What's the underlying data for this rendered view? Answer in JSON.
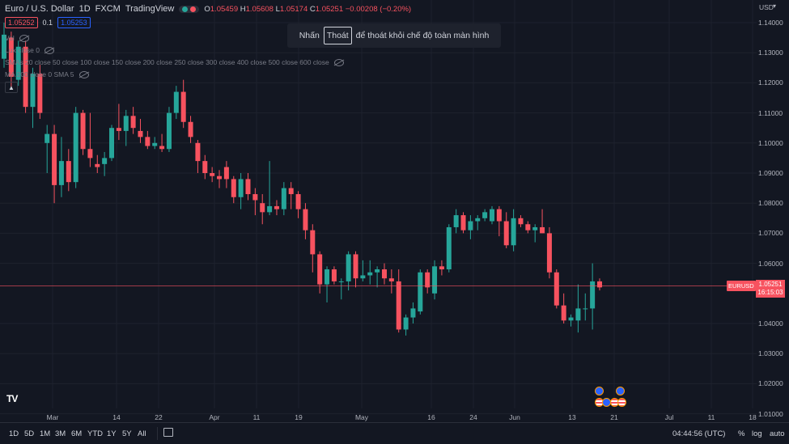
{
  "header": {
    "symbol_title": "Euro / U.S. Dollar",
    "interval": "1D",
    "exchange": "FXCM",
    "source": "TradingView",
    "ohlc": {
      "o_label": "O",
      "o": "1.05459",
      "h_label": "H",
      "h": "1.05608",
      "l_label": "L",
      "l": "1.05174",
      "c_label": "C",
      "c": "1.05251",
      "change": "−0.00208 (−0.20%)"
    },
    "colors": {
      "market_dot1": "#26a69a",
      "market_dot2": "#f7525f",
      "down": "#f7525f",
      "up": "#26a69a"
    }
  },
  "trade": {
    "sell": "1.05252",
    "spread": "0.1",
    "buy": "1.05253"
  },
  "indicators": [
    {
      "label": "Vol"
    },
    {
      "label": "Lux    close 0"
    },
    {
      "label": "SMAs 20 close 50 close 100 close 150 close 200 close 250 close 300 close 400 close 500 close 600 close"
    },
    {
      "label": "MA 200 close 0 SMA 5"
    }
  ],
  "toast": {
    "before": "Nhấn",
    "key": "Thoát",
    "after": "để thoát khỏi chế độ toàn màn hình"
  },
  "price_axis": {
    "currency": "USD",
    "labels": [
      "1.14000",
      "1.13000",
      "1.12000",
      "1.11000",
      "1.10000",
      "1.09000",
      "1.08000",
      "1.07000",
      "1.06000",
      "1.04000",
      "1.03000",
      "1.02000",
      "1.01000"
    ],
    "symbol_tag": "EURUSD",
    "last_price": "1.05251",
    "countdown": "16:15:03"
  },
  "time_axis": [
    "Mar",
    "14",
    "22",
    "Apr",
    "11",
    "19",
    "May",
    "16",
    "24",
    "Jun",
    "13",
    "21",
    "Jul",
    "11",
    "18"
  ],
  "bottom_bar": {
    "timeframes": [
      "1D",
      "5D",
      "1M",
      "3M",
      "6M",
      "YTD",
      "1Y",
      "5Y",
      "All"
    ],
    "clock": "04:44:56 (UTC)",
    "percent": "%",
    "log": "log",
    "auto": "auto"
  },
  "chart_data": {
    "type": "candlestick",
    "ylim": [
      1.01,
      1.145
    ],
    "last_price_line": 1.05251,
    "candles": [
      [
        1.128,
        1.14,
        1.125,
        1.136
      ],
      [
        1.135,
        1.137,
        1.118,
        1.122
      ],
      [
        1.121,
        1.134,
        1.119,
        1.132
      ],
      [
        1.132,
        1.134,
        1.11,
        1.112
      ],
      [
        1.112,
        1.125,
        1.105,
        1.123
      ],
      [
        1.123,
        1.126,
        1.108,
        1.11
      ],
      [
        1.1,
        1.106,
        1.09,
        1.103
      ],
      [
        1.103,
        1.106,
        1.08,
        1.086
      ],
      [
        1.086,
        1.102,
        1.082,
        1.094
      ],
      [
        1.094,
        1.098,
        1.084,
        1.087
      ],
      [
        1.087,
        1.112,
        1.085,
        1.11
      ],
      [
        1.11,
        1.111,
        1.096,
        1.098
      ],
      [
        1.098,
        1.11,
        1.092,
        1.095
      ],
      [
        1.093,
        1.096,
        1.09,
        1.092
      ],
      [
        1.093,
        1.097,
        1.089,
        1.095
      ],
      [
        1.095,
        1.106,
        1.094,
        1.105
      ],
      [
        1.105,
        1.113,
        1.101,
        1.104
      ],
      [
        1.104,
        1.111,
        1.099,
        1.109
      ],
      [
        1.109,
        1.112,
        1.103,
        1.105
      ],
      [
        1.104,
        1.108,
        1.1,
        1.102
      ],
      [
        1.102,
        1.104,
        1.098,
        1.099
      ],
      [
        1.099,
        1.102,
        1.098,
        1.1
      ],
      [
        1.099,
        1.103,
        1.097,
        1.098
      ],
      [
        1.098,
        1.112,
        1.097,
        1.11
      ],
      [
        1.11,
        1.119,
        1.108,
        1.117
      ],
      [
        1.117,
        1.121,
        1.105,
        1.107
      ],
      [
        1.107,
        1.109,
        1.1,
        1.102
      ],
      [
        1.1,
        1.101,
        1.09,
        1.094
      ],
      [
        1.094,
        1.096,
        1.088,
        1.09
      ],
      [
        1.09,
        1.092,
        1.087,
        1.089
      ],
      [
        1.089,
        1.091,
        1.085,
        1.088
      ],
      [
        1.092,
        1.094,
        1.085,
        1.088
      ],
      [
        1.088,
        1.089,
        1.08,
        1.082
      ],
      [
        1.082,
        1.09,
        1.078,
        1.088
      ],
      [
        1.088,
        1.09,
        1.081,
        1.083
      ],
      [
        1.083,
        1.085,
        1.076,
        1.081
      ],
      [
        1.08,
        1.083,
        1.073,
        1.077
      ],
      [
        1.077,
        1.094,
        1.076,
        1.079
      ],
      [
        1.079,
        1.081,
        1.076,
        1.078
      ],
      [
        1.078,
        1.087,
        1.076,
        1.085
      ],
      [
        1.085,
        1.087,
        1.078,
        1.083
      ],
      [
        1.083,
        1.084,
        1.075,
        1.078
      ],
      [
        1.078,
        1.08,
        1.068,
        1.071
      ],
      [
        1.071,
        1.073,
        1.057,
        1.063
      ],
      [
        1.063,
        1.064,
        1.05,
        1.053
      ],
      [
        1.053,
        1.059,
        1.047,
        1.058
      ],
      [
        1.058,
        1.059,
        1.053,
        1.054
      ],
      [
        1.054,
        1.055,
        1.048,
        1.054
      ],
      [
        1.054,
        1.064,
        1.051,
        1.063
      ],
      [
        1.063,
        1.064,
        1.052,
        1.055
      ],
      [
        1.055,
        1.061,
        1.054,
        1.056
      ],
      [
        1.056,
        1.061,
        1.053,
        1.057
      ],
      [
        1.057,
        1.059,
        1.052,
        1.058
      ],
      [
        1.058,
        1.06,
        1.053,
        1.055
      ],
      [
        1.055,
        1.058,
        1.05,
        1.054
      ],
      [
        1.054,
        1.058,
        1.037,
        1.038
      ],
      [
        1.038,
        1.043,
        1.036,
        1.042
      ],
      [
        1.042,
        1.047,
        1.04,
        1.045
      ],
      [
        1.044,
        1.058,
        1.043,
        1.057
      ],
      [
        1.057,
        1.058,
        1.05,
        1.052
      ],
      [
        1.05,
        1.061,
        1.048,
        1.059
      ],
      [
        1.059,
        1.061,
        1.056,
        1.058
      ],
      [
        1.058,
        1.073,
        1.057,
        1.072
      ],
      [
        1.072,
        1.078,
        1.07,
        1.076
      ],
      [
        1.076,
        1.077,
        1.07,
        1.071
      ],
      [
        1.071,
        1.076,
        1.068,
        1.074
      ],
      [
        1.074,
        1.076,
        1.071,
        1.075
      ],
      [
        1.075,
        1.078,
        1.074,
        1.077
      ],
      [
        1.074,
        1.079,
        1.073,
        1.078
      ],
      [
        1.078,
        1.079,
        1.069,
        1.074
      ],
      [
        1.074,
        1.077,
        1.065,
        1.066
      ],
      [
        1.066,
        1.078,
        1.064,
        1.075
      ],
      [
        1.075,
        1.076,
        1.072,
        1.073
      ],
      [
        1.073,
        1.074,
        1.07,
        1.071
      ],
      [
        1.071,
        1.073,
        1.067,
        1.072
      ],
      [
        1.072,
        1.078,
        1.07,
        1.07
      ],
      [
        1.07,
        1.072,
        1.055,
        1.057
      ],
      [
        1.057,
        1.058,
        1.045,
        1.046
      ],
      [
        1.046,
        1.05,
        1.04,
        1.041
      ],
      [
        1.041,
        1.043,
        1.039,
        1.042
      ],
      [
        1.041,
        1.053,
        1.037,
        1.045
      ],
      [
        1.045,
        1.05,
        1.041,
        1.045
      ],
      [
        1.045,
        1.06,
        1.038,
        1.054
      ],
      [
        1.054,
        1.055,
        1.051,
        1.052
      ]
    ]
  }
}
